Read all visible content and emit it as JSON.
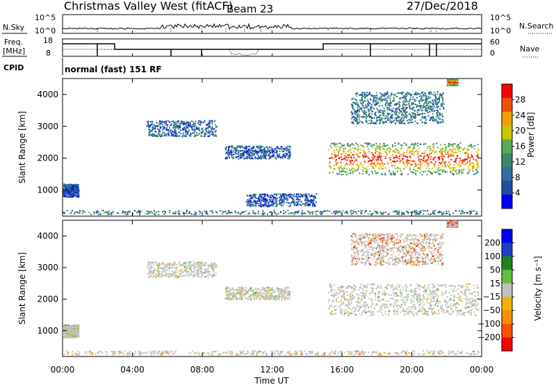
{
  "header": {
    "station": "Christmas Valley West (fitACF)",
    "beam": "Beam 23",
    "date": "27/Dec/2018"
  },
  "nsky_panel": {
    "left_label": "N.Sky",
    "right_label": "N.Search",
    "left_ticks": [
      "10^5",
      "10^0"
    ],
    "right_ticks": [
      "10^5",
      "10^0"
    ]
  },
  "freq_panel": {
    "left_label_line1": "Freq.",
    "left_label_line2": "[MHz]",
    "right_label": "Nave",
    "left_ticks": [
      "18",
      "8"
    ],
    "right_ticks": [
      "60",
      "0"
    ]
  },
  "cpid_panel": {
    "label": "CPID",
    "program": "normal (fast) 151 RF"
  },
  "x_axis": {
    "title": "Time UT",
    "tick_labels": [
      "00:00",
      "04:00",
      "08:00",
      "12:00",
      "16:00",
      "20:00",
      "00:00"
    ]
  },
  "colors": {
    "power_scale": [
      "#0000ff",
      "#1f4fa0",
      "#2f6f9f",
      "#3a8a6a",
      "#5aa95a",
      "#c8c800",
      "#f0a000",
      "#f05000",
      "#ff0000"
    ],
    "velocity_scale": [
      "#ff0000",
      "#ff5000",
      "#ff8c00",
      "#f0b400",
      "#c0c0c0",
      "#60c040",
      "#208020",
      "#2040c0",
      "#0000ff"
    ]
  },
  "chart_data": [
    {
      "type": "heatmap",
      "name": "power",
      "xlabel": "",
      "ylabel": "Slant Range [km]",
      "xlim_hours": [
        0,
        24
      ],
      "ylim": [
        180,
        4500
      ],
      "y_ticks": [
        1000,
        2000,
        3000,
        4000
      ],
      "colorbar": {
        "label": "Power [dB]",
        "range": [
          0,
          32
        ],
        "ticks": [
          4,
          8,
          12,
          16,
          20,
          24,
          28
        ]
      },
      "scatter_regions": [
        {
          "t_start": 0.0,
          "t_end": 0.9,
          "r_min": 800,
          "r_max": 1200,
          "level": 0.2
        },
        {
          "t_start": 0.0,
          "t_end": 23.8,
          "r_min": 250,
          "r_max": 380,
          "level": 0.3
        },
        {
          "t_start": 4.8,
          "t_end": 8.8,
          "r_min": 2700,
          "r_max": 3200,
          "level": 0.25
        },
        {
          "t_start": 9.3,
          "t_end": 13.0,
          "r_min": 2000,
          "r_max": 2400,
          "level": 0.22
        },
        {
          "t_start": 15.2,
          "t_end": 23.8,
          "r_min": 1500,
          "r_max": 2500,
          "level": 0.6
        },
        {
          "t_start": 16.5,
          "t_end": 21.8,
          "r_min": 3100,
          "r_max": 4100,
          "level": 0.3
        },
        {
          "t_start": 22.0,
          "t_end": 22.6,
          "r_min": 4300,
          "r_max": 4500,
          "level": 0.55
        },
        {
          "t_start": 10.5,
          "t_end": 14.5,
          "r_min": 500,
          "r_max": 900,
          "level": 0.2
        }
      ]
    },
    {
      "type": "heatmap",
      "name": "velocity",
      "xlabel": "Time UT",
      "ylabel": "Slant Range [km]",
      "xlim_hours": [
        0,
        24
      ],
      "ylim": [
        180,
        4500
      ],
      "y_ticks": [
        1000,
        2000,
        3000,
        4000
      ],
      "colorbar": {
        "label": "Velocity [m s⁻¹]",
        "range": [
          -250,
          250
        ],
        "ticks": [
          200,
          100,
          50,
          15,
          -15,
          -50,
          -100,
          -200
        ]
      },
      "scatter_regions": [
        {
          "t_start": 0.0,
          "t_end": 0.9,
          "r_min": 800,
          "r_max": 1200,
          "level": 0.5
        },
        {
          "t_start": 0.0,
          "t_end": 23.8,
          "r_min": 250,
          "r_max": 380,
          "level": 0.35
        },
        {
          "t_start": 4.8,
          "t_end": 8.8,
          "r_min": 2700,
          "r_max": 3200,
          "level": 0.5
        },
        {
          "t_start": 9.3,
          "t_end": 13.0,
          "r_min": 2000,
          "r_max": 2400,
          "level": 0.5
        },
        {
          "t_start": 15.2,
          "t_end": 23.8,
          "r_min": 1500,
          "r_max": 2500,
          "level": 0.5
        },
        {
          "t_start": 16.5,
          "t_end": 21.8,
          "r_min": 3100,
          "r_max": 4100,
          "level": 0.2
        },
        {
          "t_start": 22.0,
          "t_end": 22.6,
          "r_min": 4300,
          "r_max": 4500,
          "level": 0.05
        }
      ]
    }
  ]
}
